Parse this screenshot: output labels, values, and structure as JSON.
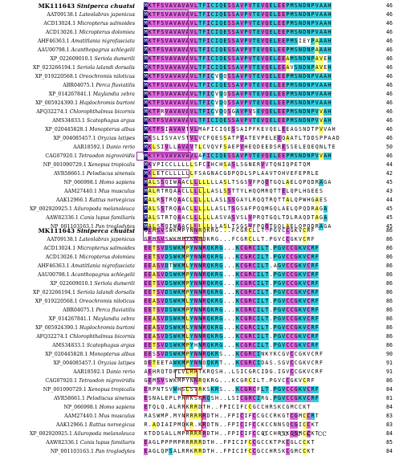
{
  "colors": {
    "identity": "#000066",
    "identity_text": "#ffffff",
    "high": "#dd66dd",
    "medium": "#33ccdd",
    "low": "#ffff66",
    "none_text": "#000000",
    "box_purple": "#993399",
    "box_red": "#cc0000"
  },
  "block1": {
    "rows": [
      {
        "id": "MK111643",
        "species": "Siniperca chuatsi",
        "seq": "MKTFSVAVAVAVLTFICIQESSAVPVTEVQELEEPMSNDNPVAAH",
        "count": "46",
        "header": true
      },
      {
        "id": "AAT09138.1",
        "species": "Lateolabrax japonicus",
        "seq": "MKTFSVAVAVAVLTFICIQESSAVPVTEVQELEEPMSNDNPVAAH",
        "count": "46"
      },
      {
        "id": "ACD13024.1",
        "species": "Micropterus salmoides",
        "seq": "MKTFSVAVAVAVLTFICIQESSAVPVTEVQELEEPMSNDNPVAAH",
        "count": "46"
      },
      {
        "id": "ACD13026.1",
        "species": "Micropterus dolomieu",
        "seq": "MKTFSVAVAVAVLTFICIQESSAVPVTEVQELEEPMSNDNPVAAH",
        "count": "46"
      },
      {
        "id": "AHF46363.1",
        "species": "Amatitlania nigrofasciata",
        "seq": "MKTFSVAVAVAVLTFICIQESSAVPVTEVQELEEPMSIEYPAAAH",
        "count": "46"
      },
      {
        "id": "AAU00798.1",
        "species": "Acanthopagrus schlegelii",
        "seq": "MKTFSVAVAVAVLTFICIQESSAVPVTEVQELEEPMSNDNPAAAH",
        "count": "46"
      },
      {
        "id": "XP_022609010.1",
        "species": "Seriola dumerili",
        "seq": "MKTFSVAVAVAVLTFICIQESSAVPVTEVQELEEAMSNDNPAVEH",
        "count": "46"
      },
      {
        "id": "XP_023266194.1",
        "species": "Seriola lalandi dorsalis",
        "seq": "MKTFSVAVAVAVLTFICIQESSAVPVTEVQELEEAVSNDNPAVEH",
        "count": "46"
      },
      {
        "id": "XP_019220568.1",
        "species": "Oreochromis niloticus",
        "seq": "MKTFSVAVAVAVLTFICVQQSSAVPVTEVQELEEPMSNDNPVAAH",
        "count": "46"
      },
      {
        "id": "ABR04075.1",
        "species": "Perca fluviatilis",
        "seq": "MKTFSVAVAVAVLTFICIQESSAVPVTEVQELEEPMSNDNPVAAH",
        "count": "46"
      },
      {
        "id": "XP_014267841.1",
        "species": "Maylandia zebra",
        "seq": "MKTFSVAVAVAVLTFICVQQSSAVPVTEVQELEEPMSNDNPVAAH",
        "count": "46"
      },
      {
        "id": "XP_005924390.1",
        "species": "Haplochromis burtoni",
        "seq": "MKTFSVAVAVAVLTFICVQQSSAVPVTEVQELEEPMSNDNPVAAH",
        "count": "46"
      },
      {
        "id": "AFQ32274.1",
        "species": "Chlorophthalmus bicornis",
        "seq": "MKTFRVAVAVAVLTFICVQQSGAVPVSEVQELEEPMSNDNPVVAH",
        "count": "46"
      },
      {
        "id": "AMS34833.1",
        "species": "Scatophagus argus",
        "seq": "MKTFSVAVAVAVLTFICIQESSAVPVTEVQELEEPMSNDNPVVAH",
        "count": "46"
      },
      {
        "id": "XP_020445828.1",
        "species": "Monopterus albus",
        "seq": "MKTFSIAVAVTVLMAFICIQESSAIPFKEVQELEEAGSNDTPVVAH",
        "count": "46"
      },
      {
        "id": "XP_004085457.1",
        "species": "Oryzias latipes",
        "seq": "MKSLISVAVSTVLVCFQESSATPVATEVPELEEQAATLTDDSPPAAD",
        "count": "46"
      },
      {
        "id": "AAR18592.1",
        "species": "Danio rerio",
        "seq": "MKLSIVLLAVAVTLCVQVFSAEPVHEQDEEDSRESSELEQEQNLTE",
        "count": "50"
      },
      {
        "id": "CAG07920.1",
        "species": "Tetraodon nigroviridis",
        "seq": "MKTFSVAVAVAVLAFICIQESSAVPVTEVQELEEPMSNDNPVVAH",
        "count": "46"
      },
      {
        "id": "NP_001090729.1",
        "species": "Xenopus tropicalis",
        "seq": "MKVPICCLLLLLSFCIHCHSASLSGNERVVTQNIQPETQM",
        "count": "44"
      },
      {
        "id": "AVR58661.1",
        "species": "Pelodiscus sinensis",
        "seq": "MKLETCLLLLLLFSAGNACGDPQDLSPLAAVTOHVEFEPRLE",
        "count": "42"
      },
      {
        "id": "NP_066998.1",
        "species": "Homo sapiens",
        "seq": "MALSSQIWAACLLLLLLLASLTSGSVFPQQTGQLAELQPQDRAGA",
        "count": "45"
      },
      {
        "id": "AAM27440.1",
        "species": "Mus musculus",
        "seq": "MALRTRQAACLLLLLLASLSSTTYLHQQMRQTTELQPLHGEES",
        "count": "43"
      },
      {
        "id": "AAK12966.1",
        "species": "Rattus norvegicus",
        "seq": "MALRSTRQAACLLLLLLASLSSGAYLRQQTRQTTALQPWHGAES",
        "count": "44"
      },
      {
        "id": "XP_002920925.1",
        "species": "Ailuropoda melanoleuca",
        "seq": "MALSSTRQAACLLLLLLASLTSGSAFPQQMGQLAELQPQDRAGA",
        "count": "45"
      },
      {
        "id": "AAW82336.1",
        "species": "Canis lupus familiaris",
        "seq": "MALSTRTQAACLLLLLLASVASVSLVPRQTGQLTDLRAQDTAGA",
        "count": "45"
      },
      {
        "id": "NP_001103163.1",
        "species": "Pan troglodytes",
        "seq": "MALSSQIWAACLLLLLLLASLTSGSVFPQQTGQLAELQPQDRAGA",
        "count": "45"
      }
    ]
  },
  "block2": {
    "rows": [
      {
        "id": "MK111643",
        "species": "Siniperca chuatsi",
        "seq": "GEMSVSWKMPYNNRQKRG...FCGRCLLT.PGVCCGKVCRF",
        "count": "86",
        "header": true
      },
      {
        "id": "AAT09138.1",
        "species": "Lateolabrax japonicus",
        "seq": "GEMSVSWKMPYNNRQKRG...FCGRCLLT.PGVCCGKVCRF",
        "count": "86"
      },
      {
        "id": "ACD13024.1",
        "species": "Micropterus salmoides",
        "seq": "EETSVDSWKMPYNNRQKRG...KCGRCILT.PGVCCGKVCRF",
        "count": "86"
      },
      {
        "id": "ACD13026.1",
        "species": "Micropterus dolomieu",
        "seq": "EETSVDSWKMPYNNRQKRG...KCGRCILT.PGVCCGKVCRF",
        "count": "86"
      },
      {
        "id": "AHF46363.1",
        "species": "Amatitlania nigrofasciata",
        "seq": "EEASVDTWKMLYNNRQKRG...KCGRCILT.AGVCCGKVCRF",
        "count": "86"
      },
      {
        "id": "AAU00798.1",
        "species": "Acanthopagrus schlegelii",
        "seq": "EEASVDSWKMPYNNRQKRG...KCGRCILT.PGVCCGKVCRF",
        "count": "86"
      },
      {
        "id": "XP_022609010.1",
        "species": "Seriola dumerili",
        "seq": "EETSVDSWKMPYNNRQKRG...KCGRCILT.PGVCCGKVCRF",
        "count": "86"
      },
      {
        "id": "XP_023266194.1",
        "species": "Seriola lalandi dorsalis",
        "seq": "EETSVDSWKMPYNNRQKRG...KCGRCILT.PGVCCGKVCRF",
        "count": "86"
      },
      {
        "id": "XP_019220568.1",
        "species": "Oreochromis niloticus",
        "seq": "EEASVDSWKMLYNNRQKRG...KCGRCILT.PGVCCGKVCRF",
        "count": "86"
      },
      {
        "id": "ABR04075.1",
        "species": "Perca fluviatilis",
        "seq": "EETSVDSWKMPYNNRQKRG...KCGRCILT.PGVCCGKVCRF",
        "count": "86"
      },
      {
        "id": "XP_014267841.1",
        "species": "Maylandia zebra",
        "seq": "EEASVDSWKMLYNNRQKRG...KCGRCILT.PGVCCGKVCRF",
        "count": "86"
      },
      {
        "id": "XP_005924390.1",
        "species": "Haplochromis burtoni",
        "seq": "EEASVDSWKMLYNNRQKRG...KCGRCILT.PGVCCGKVCRF",
        "count": "86"
      },
      {
        "id": "AFQ32274.1",
        "species": "Chlorophthalmus bicornis",
        "seq": "EEASVDSWKMLYNNRQKRG...KCGRCILT.PGVCCGKVCRF",
        "count": "86"
      },
      {
        "id": "AMS34833.1",
        "species": "Scatophagus argus",
        "seq": "EETSVDSWKMPYHNRQKRG...KCGRCILT.PGVCCGKVCRF",
        "count": "86"
      },
      {
        "id": "XP_020445828.1",
        "species": "Monopterus albus",
        "seq": "EESSVDSWKMPYNNRQKRS...KCGRCINKYKCGVCCGKVCRF",
        "count": "90"
      },
      {
        "id": "XP_004085457.1",
        "species": "Oryzias latipes",
        "seq": "DETEETAWKMPYNNQQKRT...KCGRCIDAS.SGVCCGKVCRF",
        "count": "91"
      },
      {
        "id": "AAR18592.1",
        "species": "Danio rerio",
        "seq": "AEHRQTDPLVLRRTKRQSH..LSICGRCIDG.IGVCCGKVCRF",
        "count": "91"
      },
      {
        "id": "CAG07920.1",
        "species": "Tetraodon nigroviridis",
        "seq": "GEMSVSWKMPYNNRQKRG...KCGRCILT.PGVCCGKVCRF",
        "count": "86"
      },
      {
        "id": "NP_001090729.1",
        "species": "Xenopus tropicalis",
        "seq": "ERPNTSVWHSLSVRKSKRS...KCGRCFLT.PGVCCGKVCRF",
        "count": "84"
      },
      {
        "id": "AVR58661.1",
        "species": "Pelodiscus sinensis",
        "seq": "ESNALEPLPRRKSKRQSH..LSICGRCIRG.PGVCCGKVCRF",
        "count": "81"
      },
      {
        "id": "NP_066998.1",
        "species": "Homo sapiens",
        "seq": "ETQLQ.ALRRKRRDTH..FPICIFCCGCCHRSKCGMCCKT",
        "count": "84"
      },
      {
        "id": "AAM27440.1",
        "species": "Mus musculus",
        "seq": "RASWMP.MYNRRRRRDTH..FPICIFCCGCCRKGTCGMCCRT",
        "count": "83"
      },
      {
        "id": "AAK12966.1",
        "species": "Rattus norvegicus",
        "seq": "R.ADIAIPMQKR.KRDTN..FPICIFCCKCCNNSQCGICCKT",
        "count": "83"
      },
      {
        "id": "XP_002920925.1",
        "species": "Ailuropoda melanoleuca",
        "seq": "KTDDSALLMPRRRRRDTH..FPICIFCCGCCHRSKCGMCCKT",
        "count": "84"
      },
      {
        "id": "AAW82336.1",
        "species": "Canis lupus familiaris",
        "seq": "EAGLPPPMPRRRRRDTH..FPICIFCCGCCKTPKCGLCCKT",
        "count": "85"
      },
      {
        "id": "NP_001103163.1",
        "species": "Pan troglodytes",
        "seq": "EAGLQPSALRRKRRDTH..FPICIFCCGCCHRSKCGMCCKT",
        "count": "84"
      }
    ]
  },
  "cysteine_marks": [
    "C",
    "CC",
    "CC",
    "C",
    "CC"
  ]
}
